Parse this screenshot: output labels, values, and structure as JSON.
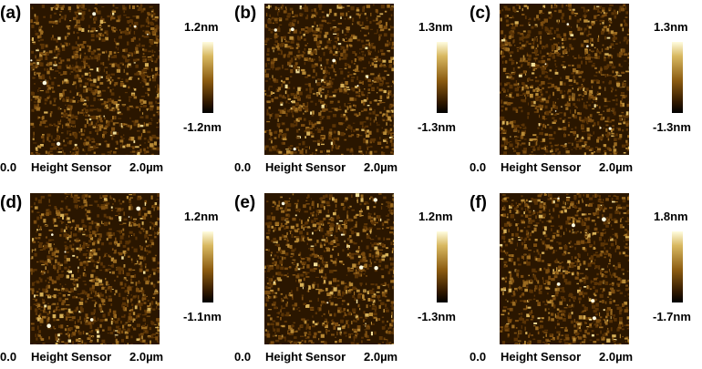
{
  "panels": [
    {
      "label": "(a)",
      "scale_max": "1.2nm",
      "scale_min": "-1.2nm",
      "axis_start": "0.0",
      "axis_title": "Height Sensor",
      "axis_end": "2.0µm"
    },
    {
      "label": "(b)",
      "scale_max": "1.3nm",
      "scale_min": "-1.3nm",
      "axis_start": "0.0",
      "axis_title": "Height Sensor",
      "axis_end": "2.0µm"
    },
    {
      "label": "(c)",
      "scale_max": "1.3nm",
      "scale_min": "-1.3nm",
      "axis_start": "0.0",
      "axis_title": "Height Sensor",
      "axis_end": "2.0µm"
    },
    {
      "label": "(d)",
      "scale_max": "1.2nm",
      "scale_min": "-1.1nm",
      "axis_start": "0.0",
      "axis_title": "Height Sensor",
      "axis_end": "2.0µm"
    },
    {
      "label": "(e)",
      "scale_max": "1.2nm",
      "scale_min": "-1.3nm",
      "axis_start": "0.0",
      "axis_title": "Height Sensor",
      "axis_end": "2.0µm"
    },
    {
      "label": "(f)",
      "scale_max": "1.8nm",
      "scale_min": "-1.7nm",
      "axis_start": "0.0",
      "axis_title": "Height Sensor",
      "axis_end": "2.0µm"
    }
  ],
  "colors": {
    "colormap_low": "#000000",
    "colormap_mid": "#8a5a10",
    "colormap_high": "#fffde0",
    "background": "#2a1600"
  }
}
